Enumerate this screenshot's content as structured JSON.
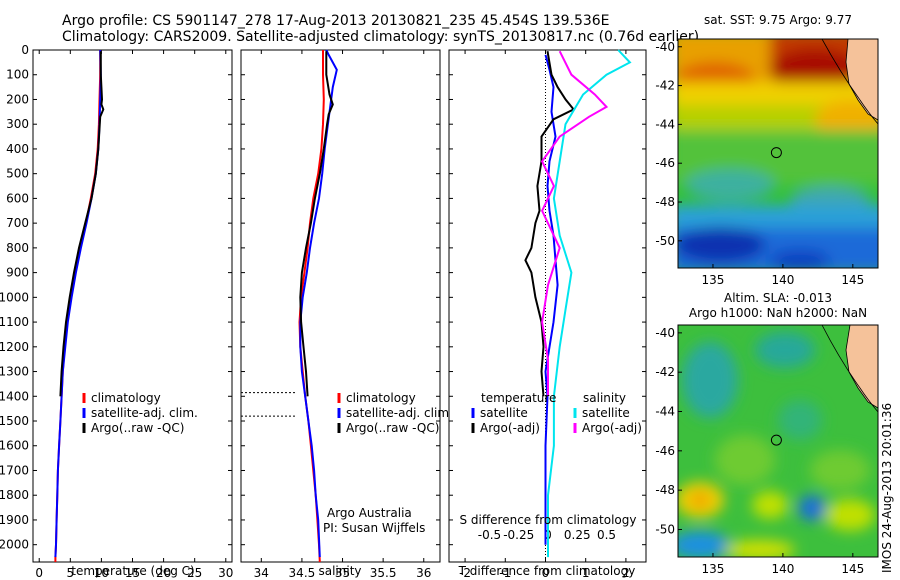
{
  "header": {
    "line1": "Argo profile: CS 5901147_278 17-Aug-2013 20130821_235 45.454S 139.536E",
    "line2": "Climatology: CARS2009. Satellite-adjusted climatology: synTS_20130817.nc (0.76d earlier)"
  },
  "colors": {
    "climatology": "#ff0000",
    "satellite": "#0000ff",
    "argo": "#000000",
    "sal_satellite": "#00e5ee",
    "sal_argo": "#ff00ff"
  },
  "chart_data": [
    {
      "type": "line",
      "name": "temperature",
      "xlabel": "temperature (deg C)",
      "ylabel": "",
      "xlim": [
        -1,
        31
      ],
      "ylim": [
        2070,
        0
      ],
      "xticks": [
        0,
        5,
        10,
        15,
        20,
        25,
        30
      ],
      "yticks": [
        0,
        100,
        200,
        300,
        400,
        500,
        600,
        700,
        800,
        900,
        1000,
        1100,
        1200,
        1300,
        1400,
        1500,
        1600,
        1700,
        1800,
        1900,
        2000
      ],
      "legend": [
        "climatology",
        "satellite-adj. clim.",
        "Argo(..raw -QC)"
      ],
      "series": [
        {
          "name": "climatology",
          "color": "#ff0000",
          "x": [
            9.8,
            9.8,
            9.7,
            9.6,
            9.4,
            9.0,
            8.3,
            7.5,
            6.6,
            5.8,
            5.1,
            4.5,
            4.1,
            3.8,
            3.6,
            3.4,
            3.2,
            3.0,
            2.9,
            2.8,
            2.7,
            2.6,
            2.6
          ],
          "y": [
            0,
            100,
            200,
            300,
            400,
            500,
            600,
            700,
            800,
            900,
            1000,
            1100,
            1200,
            1300,
            1400,
            1500,
            1600,
            1700,
            1800,
            1900,
            2000,
            2050,
            2070
          ]
        },
        {
          "name": "satellite-adj. clim.",
          "color": "#0000ff",
          "x": [
            9.8,
            9.9,
            9.8,
            9.7,
            9.5,
            9.1,
            8.4,
            7.6,
            6.7,
            5.9,
            5.2,
            4.6,
            4.2,
            3.8,
            3.6,
            3.4,
            3.2,
            3.0,
            2.9,
            2.8,
            2.7,
            2.6
          ],
          "y": [
            0,
            100,
            200,
            300,
            400,
            500,
            600,
            700,
            800,
            900,
            1000,
            1100,
            1200,
            1300,
            1400,
            1500,
            1600,
            1700,
            1800,
            1900,
            2000,
            2050
          ]
        },
        {
          "name": "Argo(..raw -QC)",
          "color": "#000000",
          "x": [
            9.9,
            9.9,
            10.0,
            10.1,
            10.0,
            10.3,
            9.8,
            9.5,
            9.1,
            8.4,
            7.4,
            6.4,
            5.6,
            4.9,
            4.3,
            3.9,
            3.6,
            3.5,
            3.4
          ],
          "y": [
            5,
            100,
            150,
            200,
            220,
            240,
            270,
            400,
            500,
            600,
            700,
            800,
            900,
            1000,
            1100,
            1200,
            1300,
            1350,
            1400
          ]
        }
      ]
    },
    {
      "type": "line",
      "name": "salinity",
      "xlabel": "salinity",
      "xlim": [
        33.75,
        36.2
      ],
      "ylim": [
        2070,
        0
      ],
      "xticks": [
        34,
        34.5,
        35,
        35.5,
        36
      ],
      "xticklabels": [
        "34",
        "34.5",
        "35",
        "35.5",
        "36"
      ],
      "legend": [
        "climatology",
        "satellite-adj. clim.",
        "Argo(..raw -QC)"
      ],
      "annotation": [
        "Argo Australia",
        "PI: Susan Wijffels"
      ],
      "dotted_lines_depth": [
        1385,
        1480
      ],
      "series": [
        {
          "name": "climatology",
          "color": "#ff0000",
          "x": [
            34.76,
            34.76,
            34.77,
            34.76,
            34.74,
            34.7,
            34.64,
            34.6,
            34.57,
            34.53,
            34.49,
            34.47,
            34.48,
            34.51,
            34.54,
            34.58,
            34.61,
            34.64,
            34.67,
            34.69,
            34.71,
            34.72
          ],
          "y": [
            0,
            100,
            200,
            300,
            400,
            500,
            600,
            700,
            800,
            900,
            1000,
            1100,
            1200,
            1300,
            1400,
            1500,
            1600,
            1700,
            1800,
            1900,
            2000,
            2070
          ]
        },
        {
          "name": "satellite-adj. clim.",
          "color": "#0000ff",
          "x": [
            34.8,
            34.83,
            34.93,
            34.88,
            34.82,
            34.78,
            34.75,
            34.71,
            34.65,
            34.6,
            34.56,
            34.51,
            34.48,
            34.48,
            34.5,
            34.54,
            34.58,
            34.62,
            34.65,
            34.67,
            34.7,
            34.72
          ],
          "y": [
            0,
            20,
            80,
            150,
            300,
            400,
            500,
            600,
            700,
            800,
            900,
            1000,
            1100,
            1200,
            1300,
            1400,
            1500,
            1600,
            1700,
            1800,
            1900,
            2050
          ]
        },
        {
          "name": "Argo(..raw -QC)",
          "color": "#000000",
          "x": [
            34.8,
            34.8,
            34.84,
            34.88,
            34.83,
            34.81,
            34.77,
            34.72,
            34.66,
            34.61,
            34.55,
            34.5,
            34.48,
            34.49,
            34.52,
            34.55,
            34.57
          ],
          "y": [
            5,
            100,
            180,
            220,
            260,
            300,
            400,
            500,
            600,
            700,
            800,
            900,
            1000,
            1100,
            1200,
            1300,
            1400
          ]
        }
      ]
    },
    {
      "type": "line",
      "name": "differences",
      "xlabel": "T difference from climatology",
      "xlabel2": "S difference from climatology",
      "xlim": [
        -2.4,
        2.5
      ],
      "ylim": [
        2070,
        0
      ],
      "xticks": [
        -2,
        -1,
        0,
        1,
        2
      ],
      "xticks2": [
        -0.5,
        -0.25,
        0,
        0.25,
        0.5
      ],
      "xticks2labels": [
        "-0.5",
        "-0.25",
        "0",
        "0.25",
        "0.5"
      ],
      "legend_temperature_title": "temperature",
      "legend_salinity_title": "salinity",
      "legend_temperature": [
        "satellite",
        "Argo(-adj)"
      ],
      "legend_salinity": [
        "satellite",
        "Argo(-adj)"
      ],
      "series": [
        {
          "name": "T satellite",
          "color": "#0000ff",
          "x": [
            0,
            0.1,
            0.2,
            0.15,
            0.25,
            0.1,
            0.05,
            0.1,
            0.2,
            0.25,
            0.3,
            0.2,
            0.1,
            0.0,
            0.05,
            0,
            0
          ],
          "y": [
            20,
            80,
            150,
            250,
            350,
            450,
            550,
            650,
            750,
            850,
            950,
            1100,
            1200,
            1300,
            1400,
            1600,
            2000
          ]
        },
        {
          "name": "T Argo(-adj)",
          "color": "#000000",
          "x": [
            0.05,
            0.15,
            0.3,
            0.5,
            0.7,
            0.2,
            -0.1,
            -0.1,
            -0.2,
            -0.15,
            -0.25,
            -0.3,
            -0.35,
            -0.5,
            -0.35,
            -0.25,
            -0.1,
            -0.05,
            -0.1,
            -0.05
          ],
          "y": [
            5,
            100,
            150,
            200,
            240,
            280,
            350,
            450,
            550,
            650,
            700,
            750,
            800,
            850,
            900,
            1000,
            1100,
            1200,
            1300,
            1400
          ]
        },
        {
          "name": "S satellite",
          "color": "#00e5ee",
          "x": [
            0.6,
            0.7,
            0.5,
            0.3,
            0.15,
            0.1,
            0.05,
            0.1,
            0.2,
            0.15,
            0.1,
            0.05,
            0.05,
            0,
            0,
            0
          ],
          "y": [
            0,
            50,
            100,
            180,
            300,
            450,
            600,
            750,
            900,
            1050,
            1200,
            1400,
            1600,
            1800,
            1950,
            2050
          ]
        },
        {
          "name": "S Argo(-adj)",
          "color": "#ff00ff",
          "x": [
            0.1,
            0.2,
            0.4,
            0.5,
            0.35,
            0.1,
            -0.05,
            0.05,
            -0.05,
            0.1,
            0.0,
            -0.05,
            0,
            0
          ],
          "y": [
            5,
            100,
            180,
            230,
            270,
            350,
            450,
            550,
            650,
            800,
            950,
            1100,
            1250,
            1400
          ]
        }
      ]
    },
    {
      "type": "heatmap",
      "name": "sst_map",
      "title": "sat. SST: 9.75  Argo: 9.77",
      "xticks": [
        135,
        140,
        145
      ],
      "yticks": [
        -40,
        -42,
        -44,
        -46,
        -48,
        -50
      ],
      "xlim": [
        132.5,
        146.8
      ],
      "ylim": [
        -51.4,
        -39.6
      ],
      "argo_position": [
        139.536,
        -45.454
      ]
    },
    {
      "type": "heatmap",
      "name": "sla_map",
      "title": "Altim. SLA: -0.013",
      "subtitle": "Argo h1000: NaN h2000: NaN",
      "xticks": [
        135,
        140,
        145
      ],
      "yticks": [
        -40,
        -42,
        -44,
        -46,
        -48,
        -50
      ],
      "xlim": [
        132.5,
        146.8
      ],
      "ylim": [
        -51.4,
        -39.6
      ],
      "argo_position": [
        139.536,
        -45.454
      ],
      "side_label": "IMOS 24-Aug-2013 20:01:36"
    }
  ]
}
